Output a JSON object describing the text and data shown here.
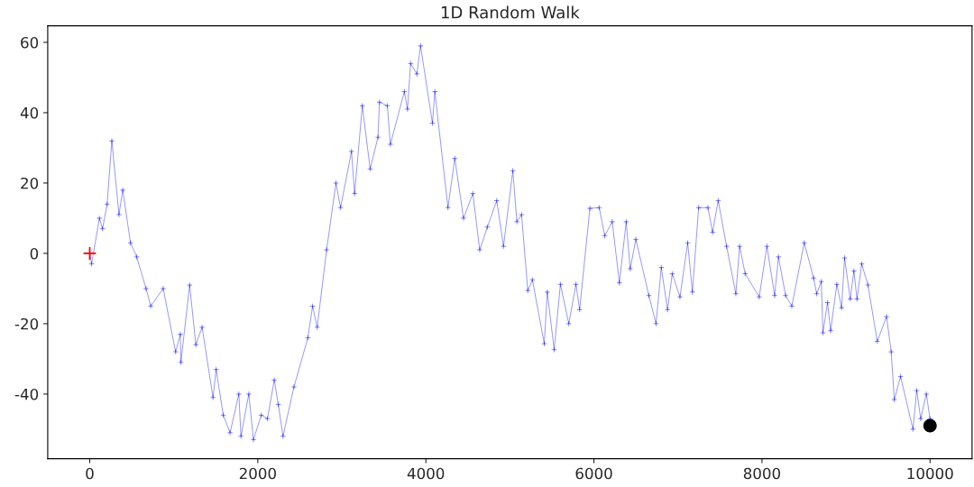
{
  "chart_data": {
    "type": "line",
    "title": "1D Random Walk",
    "xlim": [
      -500,
      10500
    ],
    "ylim": [
      -58.4,
      64.7
    ],
    "xticks": [
      0,
      2000,
      4000,
      6000,
      8000,
      10000
    ],
    "yticks": [
      -40,
      -20,
      0,
      20,
      40,
      60
    ],
    "grid": false,
    "legend": false,
    "series": [
      {
        "marker": "cross",
        "color": "#0000ff",
        "x": [
          0,
          22,
          115,
          152,
          207,
          263,
          348,
          393,
          485,
          559,
          670,
          726,
          874,
          1022,
          1078,
          1085,
          1189,
          1263,
          1337,
          1467,
          1504,
          1589,
          1670,
          1774,
          1800,
          1893,
          1948,
          2041,
          2115,
          2196,
          2244,
          2300,
          2430,
          2596,
          2652,
          2707,
          2819,
          2930,
          2985,
          3115,
          3152,
          3244,
          3337,
          3430,
          3448,
          3541,
          3578,
          3744,
          3781,
          3819,
          3893,
          3937,
          4078,
          4107,
          4263,
          4344,
          4448,
          4559,
          4641,
          4732,
          4843,
          4924,
          5035,
          5083,
          5139,
          5213,
          5268,
          5409,
          5445,
          5527,
          5601,
          5701,
          5786,
          5830,
          5952,
          6063,
          6129,
          6218,
          6303,
          6384,
          6432,
          6499,
          6654,
          6739,
          6802,
          6876,
          6932,
          7024,
          7116,
          7172,
          7246,
          7357,
          7412,
          7479,
          7579,
          7689,
          7734,
          7800,
          7967,
          8059,
          8151,
          8196,
          8281,
          8355,
          8503,
          8614,
          8651,
          8706,
          8725,
          8780,
          8817,
          8891,
          8947,
          8983,
          9050,
          9094,
          9131,
          9187,
          9261,
          9372,
          9482,
          9538,
          9575,
          9649,
          9797,
          9841,
          9889,
          9956,
          10000
        ],
        "values": [
          0,
          -3,
          10,
          7,
          14,
          32,
          11,
          18,
          3,
          -1,
          -10,
          -15,
          -10,
          -28,
          -23,
          -31,
          -9,
          -26,
          -21,
          -41,
          -33,
          -46,
          -51,
          -40,
          -52,
          -40,
          -53,
          -46,
          -47,
          -36,
          -43,
          -52,
          -38,
          -24,
          -15,
          -21,
          1,
          20,
          13,
          29,
          17,
          42,
          24,
          33,
          43,
          42,
          31,
          46,
          41,
          54,
          51,
          59,
          37,
          46,
          13,
          27,
          10,
          17,
          1,
          7.5,
          15,
          2,
          23.5,
          9,
          11,
          -10.6,
          -7.5,
          -25.7,
          -11,
          -27.4,
          -8.8,
          -20,
          -8.8,
          -16,
          12.8,
          13,
          5,
          9,
          -8.4,
          9,
          -4.4,
          4,
          -12,
          -20,
          -4,
          -16,
          -5.8,
          -12.4,
          3,
          -11,
          13,
          13,
          6,
          15,
          2,
          -11.5,
          2,
          -5.8,
          -12.4,
          2,
          -12,
          -1,
          -12,
          -15,
          3,
          -7,
          -11.5,
          -8,
          -22.6,
          -14,
          -22,
          -8.8,
          -15.5,
          -1.3,
          -13,
          -5,
          -13,
          -3,
          -9,
          -25,
          -18,
          -28,
          -41.6,
          -35,
          -50,
          -39,
          -47,
          -40,
          -47
        ]
      },
      {
        "type": "scatter",
        "marker": "cross",
        "color": "#ff0000",
        "x": [
          0
        ],
        "values": [
          0
        ]
      },
      {
        "type": "scatter",
        "marker": "circle",
        "color": "#000000",
        "x": [
          10000
        ],
        "values": [
          -49
        ]
      }
    ]
  }
}
